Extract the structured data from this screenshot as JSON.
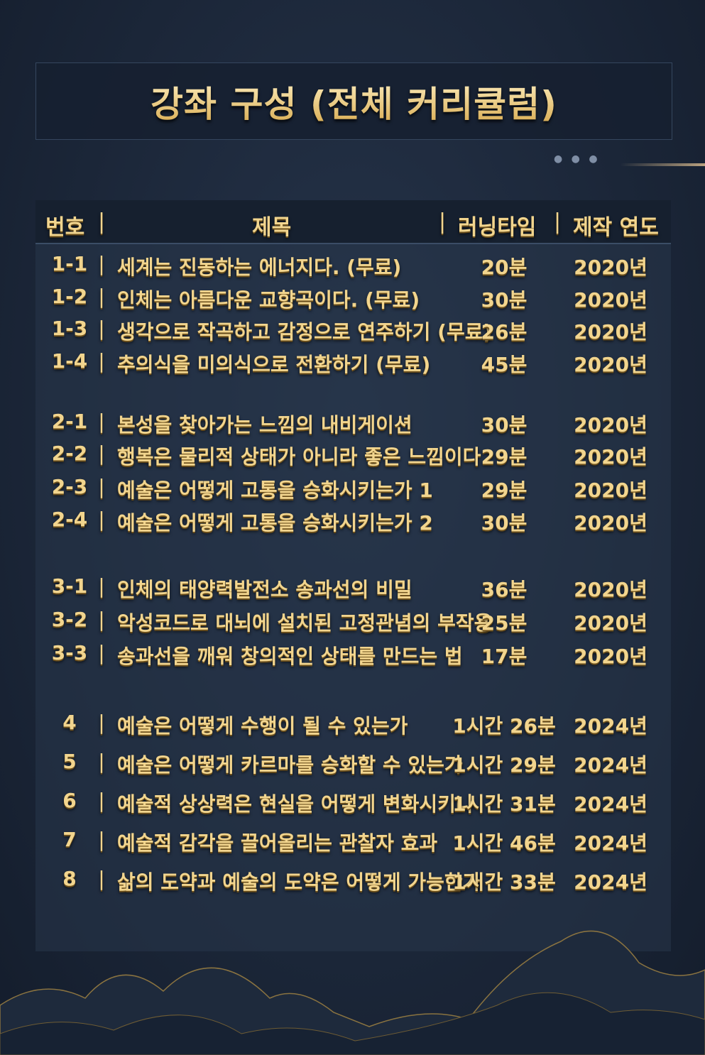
{
  "title": "강좌 구성 (전체 커리큘럼)",
  "header": {
    "number": "번호",
    "title": "제목",
    "runtime": "러닝타임",
    "year": "제작 연도",
    "separator": "|"
  },
  "rows": [
    {
      "number": "1-1",
      "title": "세계는 진동하는 에너지다. (무료)",
      "runtime": "20분",
      "year": "2020년"
    },
    {
      "number": "1-2",
      "title": "인체는 아름다운 교향곡이다. (무료)",
      "runtime": "30분",
      "year": "2020년"
    },
    {
      "number": "1-3",
      "title": "생각으로 작곡하고 감정으로 연주하기 (무료)",
      "runtime": "26분",
      "year": "2020년"
    },
    {
      "number": "1-4",
      "title": "추의식을 미의식으로 전환하기 (무료)",
      "runtime": "45분",
      "year": "2020년"
    },
    {
      "number": "2-1",
      "title": "본성을 찾아가는 느낌의 내비게이션",
      "runtime": "30분",
      "year": "2020년"
    },
    {
      "number": "2-2",
      "title": "행복은 물리적 상태가 아니라 좋은 느낌이다",
      "runtime": "29분",
      "year": "2020년"
    },
    {
      "number": "2-3",
      "title": "예술은 어떻게 고통을 승화시키는가 1",
      "runtime": "29분",
      "year": "2020년"
    },
    {
      "number": "2-4",
      "title": "예술은 어떻게 고통을 승화시키는가 2",
      "runtime": "30분",
      "year": "2020년"
    },
    {
      "number": "3-1",
      "title": "인체의 태양력발전소 송과선의 비밀",
      "runtime": "36분",
      "year": "2020년"
    },
    {
      "number": "3-2",
      "title": "악성코드로 대뇌에 설치된 고정관념의 부작용",
      "runtime": "25분",
      "year": "2020년"
    },
    {
      "number": "3-3",
      "title": "송과선을 깨워 창의적인 상태를 만드는 법",
      "runtime": "17분",
      "year": "2020년"
    },
    {
      "number": "4",
      "title": "예술은 어떻게 수행이 될 수 있는가",
      "runtime": "1시간 26분",
      "year": "2024년"
    },
    {
      "number": "5",
      "title": "예술은 어떻게 카르마를 승화할 수 있는가",
      "runtime": "1시간 29분",
      "year": "2024년"
    },
    {
      "number": "6",
      "title": "예술적 상상력은 현실을 어떻게 변화시키나",
      "runtime": "1시간 31분",
      "year": "2024년"
    },
    {
      "number": "7",
      "title": "예술적 감각을 끌어올리는 관찰자 효과",
      "runtime": "1시간 46분",
      "year": "2024년"
    },
    {
      "number": "8",
      "title": "삶의 도약과 예술의 도약은 어떻게 가능한가",
      "runtime": "1시간 33분",
      "year": "2024년"
    }
  ],
  "colors": {
    "text_gold": "#f2d58e",
    "background": "#1b2638",
    "header_bg": "#16202f"
  }
}
